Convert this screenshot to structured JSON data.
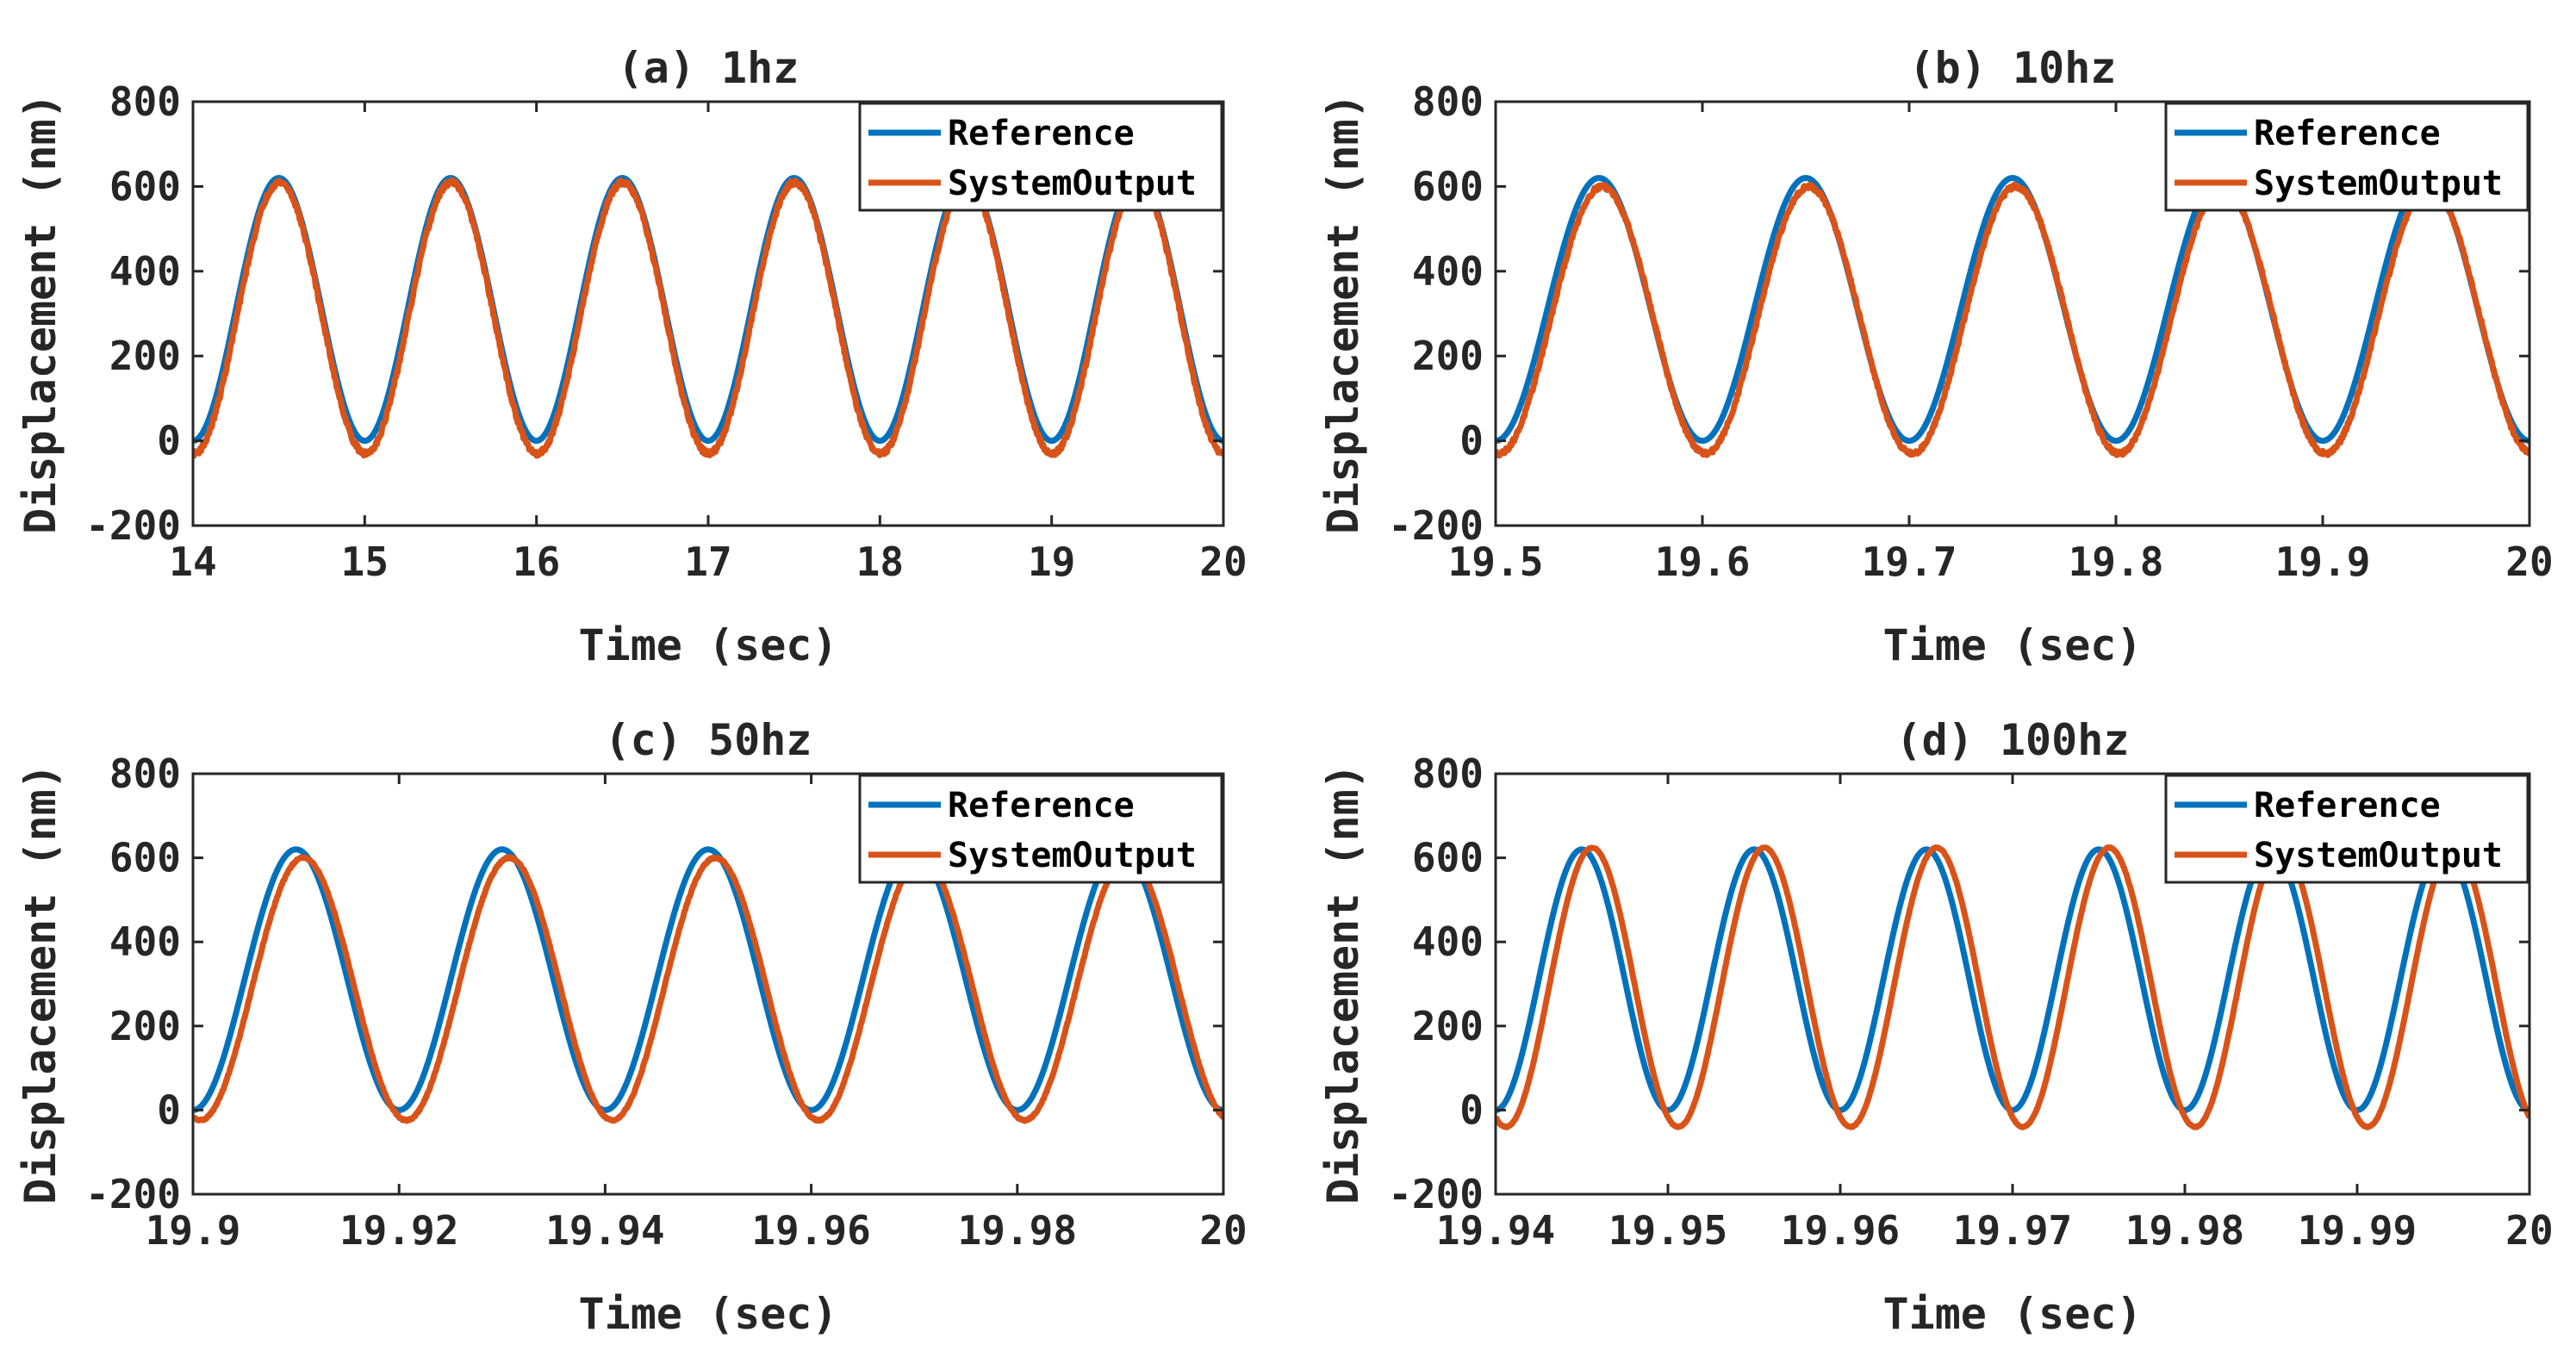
{
  "figure": {
    "layout": "2x2 grid of subplots"
  },
  "colors": {
    "reference": "#0072BD",
    "output": "#D95319",
    "axes": "#262626",
    "background": "#ffffff"
  },
  "chart_data": [
    {
      "type": "line",
      "title": "(a) 1hz",
      "xlabel": "Time (sec)",
      "ylabel": "Displacement (nm)",
      "xlim": [
        14,
        20
      ],
      "ylim": [
        -200,
        800
      ],
      "xticks": [
        14,
        15,
        16,
        17,
        18,
        19,
        20
      ],
      "xtick_labels": [
        "14",
        "15",
        "16",
        "17",
        "18",
        "19",
        "20"
      ],
      "yticks": [
        -200,
        0,
        200,
        400,
        600,
        800
      ],
      "ytick_labels": [
        "-200",
        "0",
        "200",
        "400",
        "600",
        "800"
      ],
      "legend_position": "top-right",
      "series": [
        {
          "name": "Reference",
          "color": "#0072BD",
          "function": "sine",
          "frequency_hz": 1,
          "amplitude": 310,
          "offset": 310,
          "phase_lag_sec": 0,
          "noise": 0
        },
        {
          "name": "SystemOutput",
          "color": "#D95319",
          "function": "sine",
          "frequency_hz": 1,
          "amplitude": 320,
          "offset": 290,
          "phase_lag_sec": 0.004,
          "noise": 6
        }
      ]
    },
    {
      "type": "line",
      "title": "(b) 10hz",
      "xlabel": "Time (sec)",
      "ylabel": "Displacement (nm)",
      "xlim": [
        19.5,
        20
      ],
      "ylim": [
        -200,
        800
      ],
      "xticks": [
        19.5,
        19.6,
        19.7,
        19.8,
        19.9,
        20
      ],
      "xtick_labels": [
        "19.5",
        "19.6",
        "19.7",
        "19.8",
        "19.9",
        "20"
      ],
      "yticks": [
        -200,
        0,
        200,
        400,
        600,
        800
      ],
      "ytick_labels": [
        "-200",
        "0",
        "200",
        "400",
        "600",
        "800"
      ],
      "legend_position": "top-right",
      "series": [
        {
          "name": "Reference",
          "color": "#0072BD",
          "function": "sine",
          "frequency_hz": 10,
          "amplitude": 310,
          "offset": 310,
          "phase_lag_sec": 0,
          "noise": 0
        },
        {
          "name": "SystemOutput",
          "color": "#D95319",
          "function": "sine",
          "frequency_hz": 10,
          "amplitude": 315,
          "offset": 285,
          "phase_lag_sec": 0.0015,
          "noise": 5
        }
      ]
    },
    {
      "type": "line",
      "title": "(c) 50hz",
      "xlabel": "Time (sec)",
      "ylabel": "Displacement (nm)",
      "xlim": [
        19.9,
        20
      ],
      "ylim": [
        -200,
        800
      ],
      "xticks": [
        19.9,
        19.92,
        19.94,
        19.96,
        19.98,
        20
      ],
      "xtick_labels": [
        "19.9",
        "19.92",
        "19.94",
        "19.96",
        "19.98",
        "20"
      ],
      "yticks": [
        -200,
        0,
        200,
        400,
        600,
        800
      ],
      "ytick_labels": [
        "-200",
        "0",
        "200",
        "400",
        "600",
        "800"
      ],
      "legend_position": "top-right",
      "series": [
        {
          "name": "Reference",
          "color": "#0072BD",
          "function": "sine",
          "frequency_hz": 50,
          "amplitude": 310,
          "offset": 310,
          "phase_lag_sec": 0,
          "noise": 0
        },
        {
          "name": "SystemOutput",
          "color": "#D95319",
          "function": "sine",
          "frequency_hz": 50,
          "amplitude": 312,
          "offset": 288,
          "phase_lag_sec": 0.0007,
          "noise": 2
        }
      ]
    },
    {
      "type": "line",
      "title": "(d) 100hz",
      "xlabel": "Time (sec)",
      "ylabel": "Displacement (nm)",
      "xlim": [
        19.94,
        20
      ],
      "ylim": [
        -200,
        800
      ],
      "xticks": [
        19.94,
        19.95,
        19.96,
        19.97,
        19.98,
        19.99,
        20
      ],
      "xtick_labels": [
        "19.94",
        "19.95",
        "19.96",
        "19.97",
        "19.98",
        "19.99",
        "20"
      ],
      "yticks": [
        -200,
        0,
        200,
        400,
        600,
        800
      ],
      "ytick_labels": [
        "-200",
        "0",
        "200",
        "400",
        "600",
        "800"
      ],
      "legend_position": "top-right",
      "series": [
        {
          "name": "Reference",
          "color": "#0072BD",
          "function": "sine",
          "frequency_hz": 100,
          "amplitude": 310,
          "offset": 310,
          "phase_lag_sec": 0,
          "noise": 0
        },
        {
          "name": "SystemOutput",
          "color": "#D95319",
          "function": "sine",
          "frequency_hz": 100,
          "amplitude": 332,
          "offset": 292,
          "phase_lag_sec": 0.0006,
          "noise": 1
        }
      ]
    }
  ]
}
